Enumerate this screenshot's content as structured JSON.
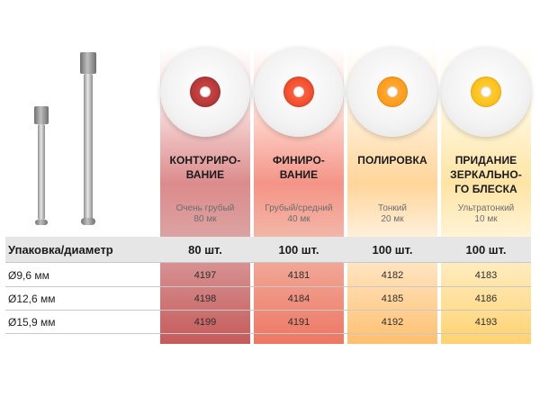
{
  "columns": [
    {
      "title_line1": "КОНТУРИРО-",
      "title_line2": "ВАНИЕ",
      "title_line3": "",
      "grit_line1": "Очень грубый",
      "grit_line2": "80 мк"
    },
    {
      "title_line1": "ФИНИРО-",
      "title_line2": "ВАНИЕ",
      "title_line3": "",
      "grit_line1": "Грубый/средний",
      "grit_line2": "40 мк"
    },
    {
      "title_line1": "ПОЛИРОВКА",
      "title_line2": "",
      "title_line3": "",
      "grit_line1": "Тонкий",
      "grit_line2": "20 мк"
    },
    {
      "title_line1": "ПРИДАНИЕ",
      "title_line2": "ЗЕРКАЛЬНО-",
      "title_line3": "ГО БЛЕСКА",
      "grit_line1": "Ультратонкий",
      "grit_line2": "10 мк"
    }
  ],
  "table": {
    "header_label": "Упаковка/диаметр",
    "counts": [
      "80 шт.",
      "100 шт.",
      "100 шт.",
      "100 шт."
    ],
    "rows": [
      {
        "label": "Ø9,6 мм",
        "codes": [
          "4197",
          "4181",
          "4182",
          "4183"
        ]
      },
      {
        "label": "Ø12,6 мм",
        "codes": [
          "4198",
          "4184",
          "4185",
          "4186"
        ]
      },
      {
        "label": "Ø15,9 мм",
        "codes": [
          "4199",
          "4191",
          "4192",
          "4193"
        ]
      }
    ]
  },
  "colors": {
    "col1": "#c55b5b",
    "col2": "#ed7763",
    "col3": "#ffc070",
    "col4": "#ffd271"
  }
}
